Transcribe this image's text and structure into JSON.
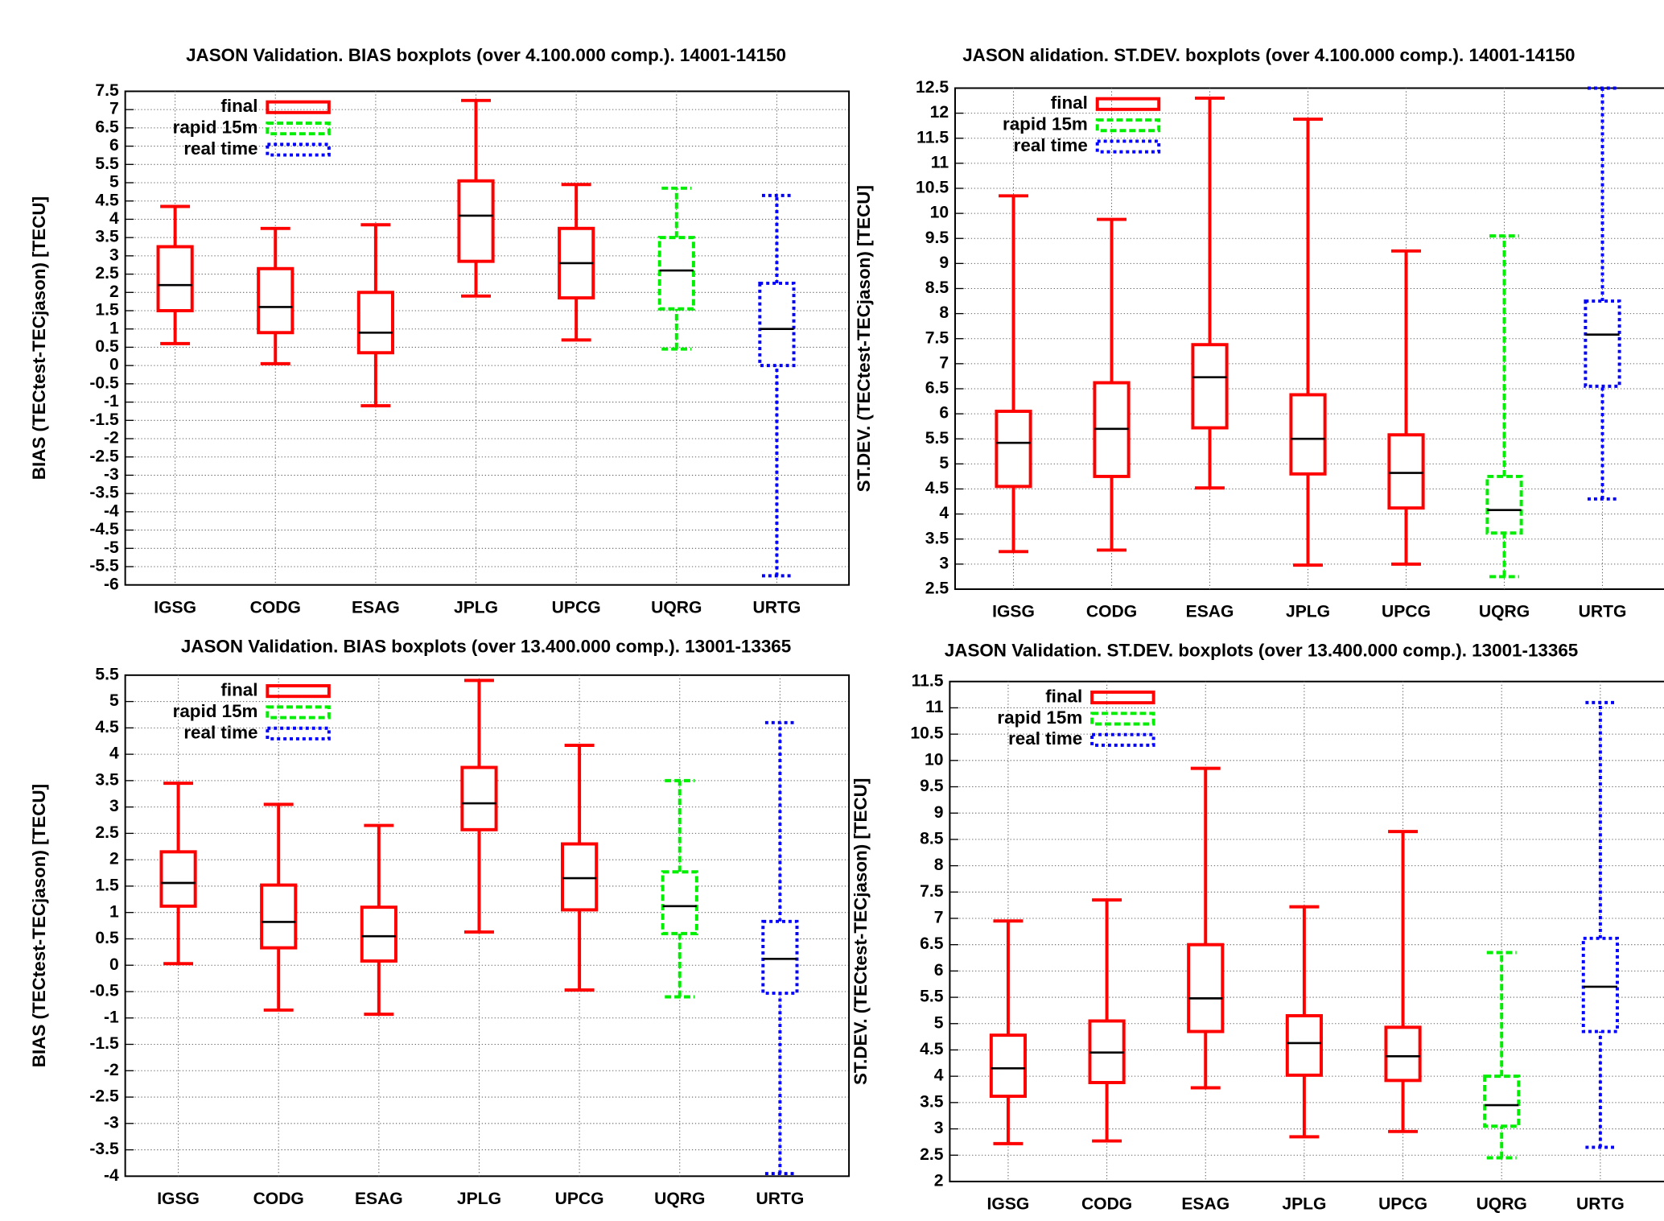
{
  "chart_data": [
    {
      "type": "boxplot",
      "title": "JASON Validation. BIAS boxplots (over 4.100.000 comp.). 14001-14150",
      "y_label": "BIAS (TECtest-TECjason) [TECU]",
      "categories": [
        "IGSG",
        "CODG",
        "ESAG",
        "JPLG",
        "UPCG",
        "UQRG",
        "URTG"
      ],
      "series": [
        {
          "name": "final",
          "color": "#ff0000",
          "dash": "solid",
          "values": [
            {
              "min": 0.6,
              "q1": 1.5,
              "median": 2.2,
              "q3": 3.25,
              "max": 4.35
            },
            {
              "min": 0.05,
              "q1": 0.9,
              "median": 1.6,
              "q3": 2.65,
              "max": 3.75
            },
            {
              "min": -1.1,
              "q1": 0.35,
              "median": 0.9,
              "q3": 2.0,
              "max": 3.85
            },
            {
              "min": 1.9,
              "q1": 2.85,
              "median": 4.1,
              "q3": 5.05,
              "max": 7.25
            },
            {
              "min": 0.7,
              "q1": 1.85,
              "median": 2.8,
              "q3": 3.75,
              "max": 4.95
            },
            null,
            null
          ]
        },
        {
          "name": "rapid 15m",
          "color": "#00ee00",
          "dash": "dashed",
          "values": [
            null,
            null,
            null,
            null,
            null,
            {
              "min": 0.45,
              "q1": 1.55,
              "median": 2.6,
              "q3": 3.5,
              "max": 4.85
            },
            null
          ]
        },
        {
          "name": "real time",
          "color": "#0000ff",
          "dash": "dotted",
          "values": [
            null,
            null,
            null,
            null,
            null,
            null,
            {
              "min": -5.75,
              "q1": 0,
              "median": 1.0,
              "q3": 2.25,
              "max": 4.65
            }
          ]
        }
      ],
      "median_color": "#000000",
      "ylim": [
        -6,
        7.5
      ],
      "yticks": [
        -6,
        -5.5,
        -5,
        -4.5,
        -4,
        -3.5,
        -3,
        -2.5,
        -2,
        -1.5,
        -1,
        -0.5,
        0,
        0.5,
        1,
        1.5,
        2,
        2.5,
        3,
        3.5,
        4,
        4.5,
        5,
        5.5,
        6,
        6.5,
        7,
        7.5
      ],
      "grid": true,
      "legend": "upper left"
    },
    {
      "type": "boxplot",
      "title": "JASON alidation. ST.DEV. boxplots (over 4.100.000 comp.). 14001-14150",
      "y_label": "ST.DEV. (TECtest-TECjason) [TECU]",
      "categories": [
        "IGSG",
        "CODG",
        "ESAG",
        "JPLG",
        "UPCG",
        "UQRG",
        "URTG"
      ],
      "series": [
        {
          "name": "final",
          "color": "#ff0000",
          "dash": "solid",
          "values": [
            {
              "min": 3.25,
              "q1": 4.55,
              "median": 5.42,
              "q3": 6.05,
              "max": 10.35
            },
            {
              "min": 3.28,
              "q1": 4.75,
              "median": 5.7,
              "q3": 6.62,
              "max": 9.88
            },
            {
              "min": 4.52,
              "q1": 5.72,
              "median": 6.73,
              "q3": 7.38,
              "max": 12.3
            },
            {
              "min": 2.98,
              "q1": 4.8,
              "median": 5.5,
              "q3": 6.38,
              "max": 11.88
            },
            {
              "min": 3.0,
              "q1": 4.12,
              "median": 4.82,
              "q3": 5.58,
              "max": 9.25
            },
            null,
            null
          ]
        },
        {
          "name": "rapid 15m",
          "color": "#00ee00",
          "dash": "dashed",
          "values": [
            null,
            null,
            null,
            null,
            null,
            {
              "min": 2.75,
              "q1": 3.62,
              "median": 4.08,
              "q3": 4.75,
              "max": 9.55
            },
            null
          ]
        },
        {
          "name": "real time",
          "color": "#0000ff",
          "dash": "dotted",
          "values": [
            null,
            null,
            null,
            null,
            null,
            null,
            {
              "min": 4.3,
              "q1": 6.55,
              "median": 7.58,
              "q3": 8.25,
              "max": 12.5
            }
          ]
        }
      ],
      "median_color": "#000000",
      "ylim": [
        2.5,
        12.5
      ],
      "yticks": [
        2.5,
        3,
        3.5,
        4,
        4.5,
        5,
        5.5,
        6,
        6.5,
        7,
        7.5,
        8,
        8.5,
        9,
        9.5,
        10,
        10.5,
        11,
        11.5,
        12,
        12.5
      ],
      "grid": true,
      "legend": "upper left"
    },
    {
      "type": "boxplot",
      "title": "JASON Validation. BIAS boxplots (over 13.400.000 comp.). 13001-13365",
      "y_label": "BIAS (TECtest-TECjason) [TECU]",
      "categories": [
        "IGSG",
        "CODG",
        "ESAG",
        "JPLG",
        "UPCG",
        "UQRG",
        "URTG"
      ],
      "series": [
        {
          "name": "final",
          "color": "#ff0000",
          "dash": "solid",
          "values": [
            {
              "min": 0.03,
              "q1": 1.12,
              "median": 1.56,
              "q3": 2.15,
              "max": 3.45
            },
            {
              "min": -0.85,
              "q1": 0.33,
              "median": 0.82,
              "q3": 1.52,
              "max": 3.05
            },
            {
              "min": -0.93,
              "q1": 0.08,
              "median": 0.55,
              "q3": 1.1,
              "max": 2.65
            },
            {
              "min": 0.63,
              "q1": 2.57,
              "median": 3.07,
              "q3": 3.75,
              "max": 5.4
            },
            {
              "min": -0.47,
              "q1": 1.05,
              "median": 1.65,
              "q3": 2.3,
              "max": 4.17
            },
            null,
            null
          ]
        },
        {
          "name": "rapid 15m",
          "color": "#00ee00",
          "dash": "dashed",
          "values": [
            null,
            null,
            null,
            null,
            null,
            {
              "min": -0.6,
              "q1": 0.6,
              "median": 1.12,
              "q3": 1.77,
              "max": 3.5
            },
            null
          ]
        },
        {
          "name": "real time",
          "color": "#0000ff",
          "dash": "dotted",
          "values": [
            null,
            null,
            null,
            null,
            null,
            null,
            {
              "min": -3.95,
              "q1": -0.53,
              "median": 0.12,
              "q3": 0.83,
              "max": 4.6
            }
          ]
        }
      ],
      "median_color": "#000000",
      "ylim": [
        -4,
        5.5
      ],
      "yticks": [
        -4,
        -3.5,
        -3,
        -2.5,
        -2,
        -1.5,
        -1,
        -0.5,
        0,
        0.5,
        1,
        1.5,
        2,
        2.5,
        3,
        3.5,
        4,
        4.5,
        5,
        5.5
      ],
      "grid": true,
      "legend": "upper left"
    },
    {
      "type": "boxplot",
      "title": "JASON Validation. ST.DEV. boxplots (over 13.400.000 comp.). 13001-13365",
      "y_label": "ST.DEV. (TECtest-TECjason) [TECU]",
      "categories": [
        "IGSG",
        "CODG",
        "ESAG",
        "JPLG",
        "UPCG",
        "UQRG",
        "URTG"
      ],
      "series": [
        {
          "name": "final",
          "color": "#ff0000",
          "dash": "solid",
          "values": [
            {
              "min": 2.72,
              "q1": 3.62,
              "median": 4.15,
              "q3": 4.78,
              "max": 6.95
            },
            {
              "min": 2.77,
              "q1": 3.88,
              "median": 4.45,
              "q3": 5.05,
              "max": 7.35
            },
            {
              "min": 3.78,
              "q1": 4.85,
              "median": 5.48,
              "q3": 6.5,
              "max": 9.85
            },
            {
              "min": 2.85,
              "q1": 4.02,
              "median": 4.63,
              "q3": 5.15,
              "max": 7.22
            },
            {
              "min": 2.95,
              "q1": 3.92,
              "median": 4.38,
              "q3": 4.93,
              "max": 8.65
            },
            null,
            null
          ]
        },
        {
          "name": "rapid 15m",
          "color": "#00ee00",
          "dash": "dashed",
          "values": [
            null,
            null,
            null,
            null,
            null,
            {
              "min": 2.45,
              "q1": 3.05,
              "median": 3.45,
              "q3": 4.0,
              "max": 6.35
            },
            null
          ]
        },
        {
          "name": "real time",
          "color": "#0000ff",
          "dash": "dotted",
          "values": [
            null,
            null,
            null,
            null,
            null,
            null,
            {
              "min": 2.65,
              "q1": 4.85,
              "median": 5.7,
              "q3": 6.62,
              "max": 11.1
            }
          ]
        }
      ],
      "median_color": "#000000",
      "ylim": [
        2,
        11.5
      ],
      "yticks": [
        2,
        2.5,
        3,
        3.5,
        4,
        4.5,
        5,
        5.5,
        6,
        6.5,
        7,
        7.5,
        8,
        8.5,
        9,
        9.5,
        10,
        10.5,
        11,
        11.5
      ],
      "grid": true,
      "legend": "upper left"
    }
  ]
}
